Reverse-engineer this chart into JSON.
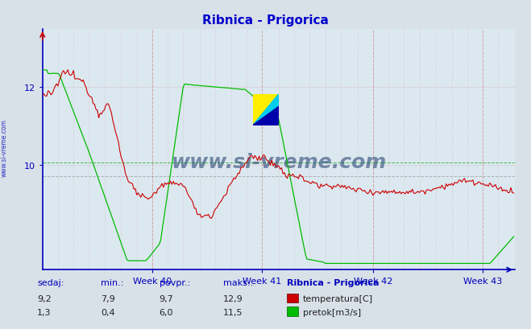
{
  "title": "Ribnica - Prigorica",
  "title_color": "#0000cc",
  "bg_color": "#d8e0e8",
  "plot_bg_color": "#dce8f0",
  "temp_color": "#cc0000",
  "flow_color": "#00bb00",
  "temp_label": "temperatura[C]",
  "flow_label": "pretok[m3/s]",
  "station_label": "Ribnica - Prigorica",
  "sedaj_label": "sedaj:",
  "min_label": "min.:",
  "povpr_label": "povpr.:",
  "maks_label": "maks.:",
  "temp_sedaj": "9,2",
  "temp_min": "7,9",
  "temp_povpr": "9,7",
  "temp_maks": "12,9",
  "flow_sedaj": "1,3",
  "flow_min": "0,4",
  "flow_povpr": "6,0",
  "flow_maks": "11,5",
  "week_labels": [
    "Week 40",
    "Week 41",
    "Week 42",
    "Week 43"
  ],
  "axis_color": "#0000bb",
  "grid_color_v": "#cc9999",
  "grid_color_h": "#cc9999",
  "avg_temp_color": "#999999",
  "avg_flow_color": "#00aa00",
  "watermark_text": "www.si-vreme.com",
  "watermark_color": "#1a3a6a",
  "figsize": [
    6.59,
    4.1
  ],
  "dpi": 100,
  "y_min": 7.3,
  "y_max": 13.5,
  "flow_scale_max": 13.5,
  "n_samples": 336
}
